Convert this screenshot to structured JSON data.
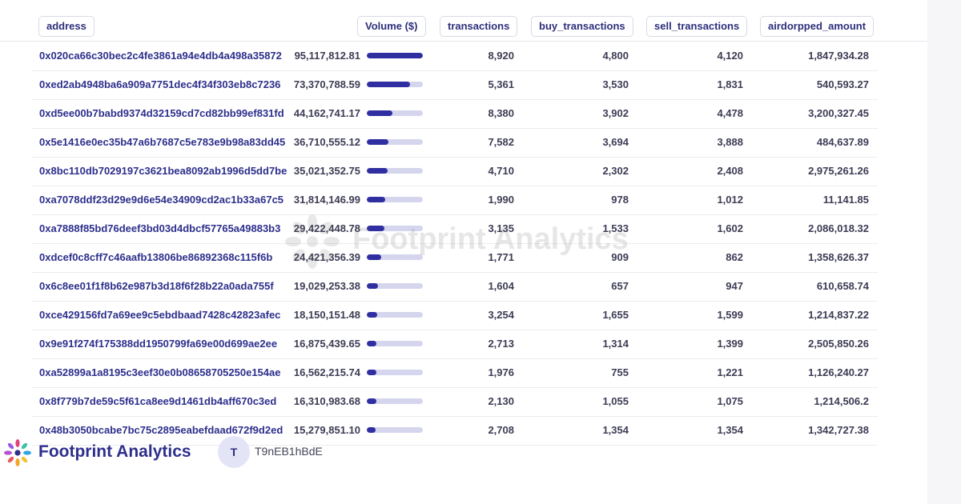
{
  "columns": {
    "address": "address",
    "volume": "Volume ($)",
    "transactions": "transactions",
    "buy_transactions": "buy_transactions",
    "sell_transactions": "sell_transactions",
    "airdropped_amount": "airdorpped_amount"
  },
  "rows": [
    {
      "address": "0x020ca66c30bec2c4fe3861a94e4db4a498a35872",
      "volume": "95,117,812.81",
      "volume_fraction": 1.0,
      "transactions": "8,920",
      "buy": "4,800",
      "sell": "4,120",
      "airdrop": "1,847,934.28"
    },
    {
      "address": "0xed2ab4948ba6a909a7751dec4f34f303eb8c7236",
      "volume": "73,370,788.59",
      "volume_fraction": 0.771,
      "transactions": "5,361",
      "buy": "3,530",
      "sell": "1,831",
      "airdrop": "540,593.27"
    },
    {
      "address": "0xd5ee00b7babd9374d32159cd7cd82bb99ef831fd",
      "volume": "44,162,741.17",
      "volume_fraction": 0.464,
      "transactions": "8,380",
      "buy": "3,902",
      "sell": "4,478",
      "airdrop": "3,200,327.45"
    },
    {
      "address": "0x5e1416e0ec35b47a6b7687c5e783e9b98a83dd45",
      "volume": "36,710,555.12",
      "volume_fraction": 0.386,
      "transactions": "7,582",
      "buy": "3,694",
      "sell": "3,888",
      "airdrop": "484,637.89"
    },
    {
      "address": "0x8bc110db7029197c3621bea8092ab1996d5dd7be",
      "volume": "35,021,352.75",
      "volume_fraction": 0.368,
      "transactions": "4,710",
      "buy": "2,302",
      "sell": "2,408",
      "airdrop": "2,975,261.26"
    },
    {
      "address": "0xa7078ddf23d29e9d6e54e34909cd2ac1b33a67c5",
      "volume": "31,814,146.99",
      "volume_fraction": 0.334,
      "transactions": "1,990",
      "buy": "978",
      "sell": "1,012",
      "airdrop": "11,141.85"
    },
    {
      "address": "0xa7888f85bd76deef3bd03d4dbcf57765a49883b3",
      "volume": "29,422,448.78",
      "volume_fraction": 0.309,
      "transactions": "3,135",
      "buy": "1,533",
      "sell": "1,602",
      "airdrop": "2,086,018.32"
    },
    {
      "address": "0xdcef0c8cff7c46aafb13806be86892368c115f6b",
      "volume": "24,421,356.39",
      "volume_fraction": 0.257,
      "transactions": "1,771",
      "buy": "909",
      "sell": "862",
      "airdrop": "1,358,626.37"
    },
    {
      "address": "0x6c8ee01f1f8b62e987b3d18f6f28b22a0ada755f",
      "volume": "19,029,253.38",
      "volume_fraction": 0.2,
      "transactions": "1,604",
      "buy": "657",
      "sell": "947",
      "airdrop": "610,658.74"
    },
    {
      "address": "0xce429156fd7a69ee9c5ebdbaad7428c42823afec",
      "volume": "18,150,151.48",
      "volume_fraction": 0.191,
      "transactions": "3,254",
      "buy": "1,655",
      "sell": "1,599",
      "airdrop": "1,214,837.22"
    },
    {
      "address": "0x9e91f274f175388dd1950799fa69e00d699ae2ee",
      "volume": "16,875,439.65",
      "volume_fraction": 0.177,
      "transactions": "2,713",
      "buy": "1,314",
      "sell": "1,399",
      "airdrop": "2,505,850.26"
    },
    {
      "address": "0xa52899a1a8195c3eef30e0b08658705250e154ae",
      "volume": "16,562,215.74",
      "volume_fraction": 0.174,
      "transactions": "1,976",
      "buy": "755",
      "sell": "1,221",
      "airdrop": "1,126,240.27"
    },
    {
      "address": "0x8f779b7de59c5f61ca8ee9d1461db4aff670c3ed",
      "volume": "16,310,983.68",
      "volume_fraction": 0.171,
      "transactions": "2,130",
      "buy": "1,055",
      "sell": "1,075",
      "airdrop": "1,214,506.2"
    },
    {
      "address": "0x48b3050bcabe7bc75c2895eabefdaad672f9d2ed",
      "volume": "15,279,851.10",
      "volume_fraction": 0.161,
      "transactions": "2,708",
      "buy": "1,354",
      "sell": "1,354",
      "airdrop": "1,342,727.38"
    }
  ],
  "watermark": "Footprint Analytics",
  "footer": {
    "brand": "Footprint Analytics",
    "avatar_initial": "T",
    "username": "T9nEB1hBdE"
  },
  "colors": {
    "accent": "#2f2fa2",
    "bar_track": "#d5d6ee",
    "link": "#2d2f8c"
  },
  "icons": {
    "brand_logo": "footprint-logo-icon",
    "watermark_logo": "footprint-logo-icon"
  }
}
